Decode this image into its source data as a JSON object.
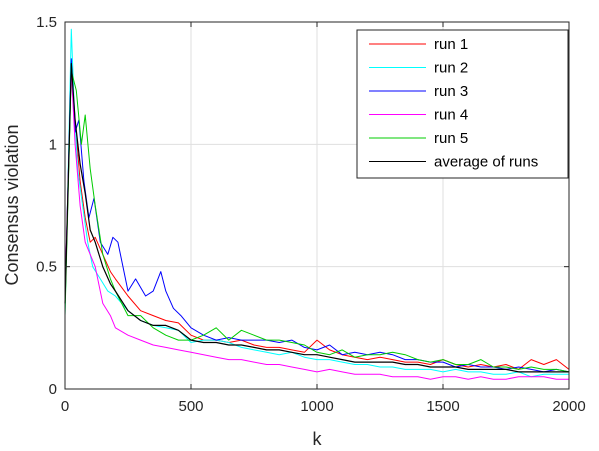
{
  "chart_data": {
    "type": "line",
    "title": "",
    "xlabel": "k",
    "ylabel": "Consensus violation",
    "xlim": [
      0,
      2000
    ],
    "ylim": [
      0,
      1.5
    ],
    "xticks": [
      0,
      500,
      1000,
      1500,
      2000
    ],
    "xtick_labels": [
      "0",
      "500",
      "1000",
      "1500",
      "2000"
    ],
    "yticks": [
      0,
      0.5,
      1,
      1.5
    ],
    "ytick_labels": [
      "0",
      "0.5",
      "1",
      "1.5"
    ],
    "grid": true,
    "legend_position": "top-right",
    "series": [
      {
        "name": "run 1",
        "color": "#ff0000",
        "x": [
          0,
          25,
          40,
          60,
          80,
          100,
          120,
          150,
          180,
          200,
          250,
          300,
          350,
          400,
          450,
          500,
          550,
          600,
          650,
          700,
          750,
          800,
          850,
          900,
          950,
          1000,
          1050,
          1100,
          1150,
          1200,
          1250,
          1300,
          1350,
          1400,
          1450,
          1500,
          1550,
          1600,
          1650,
          1700,
          1750,
          1800,
          1850,
          1900,
          1950,
          2000
        ],
        "y": [
          0.35,
          1.32,
          1.1,
          0.85,
          0.7,
          0.6,
          0.62,
          0.55,
          0.48,
          0.45,
          0.38,
          0.32,
          0.3,
          0.28,
          0.27,
          0.22,
          0.2,
          0.2,
          0.19,
          0.2,
          0.18,
          0.17,
          0.17,
          0.16,
          0.15,
          0.2,
          0.16,
          0.14,
          0.13,
          0.12,
          0.13,
          0.12,
          0.11,
          0.11,
          0.1,
          0.12,
          0.1,
          0.09,
          0.1,
          0.09,
          0.1,
          0.08,
          0.12,
          0.1,
          0.12,
          0.08
        ]
      },
      {
        "name": "run 2",
        "color": "#00ffff",
        "x": [
          0,
          25,
          35,
          50,
          70,
          90,
          110,
          140,
          170,
          200,
          250,
          300,
          350,
          400,
          450,
          500,
          550,
          600,
          650,
          700,
          750,
          800,
          850,
          900,
          950,
          1000,
          1050,
          1100,
          1150,
          1200,
          1250,
          1300,
          1350,
          1400,
          1450,
          1500,
          1550,
          1600,
          1650,
          1700,
          1750,
          1800,
          1850,
          1900,
          1950,
          2000
        ],
        "y": [
          0.3,
          1.47,
          1.2,
          0.9,
          0.75,
          0.6,
          0.5,
          0.45,
          0.4,
          0.38,
          0.32,
          0.28,
          0.26,
          0.25,
          0.24,
          0.19,
          0.2,
          0.2,
          0.19,
          0.17,
          0.16,
          0.15,
          0.14,
          0.15,
          0.13,
          0.12,
          0.12,
          0.11,
          0.1,
          0.1,
          0.09,
          0.09,
          0.08,
          0.08,
          0.08,
          0.07,
          0.08,
          0.07,
          0.07,
          0.06,
          0.06,
          0.07,
          0.05,
          0.06,
          0.06,
          0.06
        ]
      },
      {
        "name": "run 3",
        "color": "#0000ff",
        "x": [
          0,
          25,
          40,
          55,
          75,
          95,
          115,
          140,
          170,
          190,
          210,
          250,
          280,
          320,
          350,
          380,
          400,
          430,
          460,
          500,
          550,
          600,
          650,
          700,
          750,
          800,
          850,
          900,
          950,
          1000,
          1050,
          1100,
          1150,
          1200,
          1250,
          1300,
          1350,
          1400,
          1450,
          1500,
          1550,
          1600,
          1650,
          1700,
          1750,
          1800,
          1850,
          1900,
          1950,
          2000
        ],
        "y": [
          0.35,
          1.35,
          1.05,
          1.1,
          0.85,
          0.7,
          0.78,
          0.6,
          0.55,
          0.62,
          0.6,
          0.4,
          0.45,
          0.38,
          0.4,
          0.48,
          0.4,
          0.33,
          0.3,
          0.25,
          0.22,
          0.2,
          0.21,
          0.2,
          0.2,
          0.2,
          0.19,
          0.2,
          0.17,
          0.16,
          0.18,
          0.14,
          0.15,
          0.14,
          0.15,
          0.14,
          0.12,
          0.12,
          0.11,
          0.11,
          0.09,
          0.1,
          0.09,
          0.09,
          0.08,
          0.09,
          0.08,
          0.07,
          0.08,
          0.07
        ]
      },
      {
        "name": "run 4",
        "color": "#ff00ff",
        "x": [
          0,
          25,
          40,
          60,
          80,
          100,
          120,
          150,
          180,
          200,
          250,
          300,
          350,
          400,
          450,
          500,
          550,
          600,
          650,
          700,
          750,
          800,
          850,
          900,
          950,
          1000,
          1050,
          1100,
          1150,
          1200,
          1250,
          1300,
          1350,
          1400,
          1450,
          1500,
          1550,
          1600,
          1650,
          1700,
          1750,
          1800,
          1850,
          1900,
          1950,
          2000
        ],
        "y": [
          0.4,
          1.3,
          1.0,
          0.75,
          0.6,
          0.55,
          0.5,
          0.35,
          0.3,
          0.25,
          0.22,
          0.2,
          0.18,
          0.17,
          0.16,
          0.15,
          0.14,
          0.13,
          0.12,
          0.12,
          0.11,
          0.1,
          0.1,
          0.09,
          0.08,
          0.07,
          0.08,
          0.07,
          0.06,
          0.06,
          0.06,
          0.05,
          0.05,
          0.05,
          0.04,
          0.05,
          0.05,
          0.04,
          0.05,
          0.04,
          0.04,
          0.05,
          0.05,
          0.05,
          0.04,
          0.04
        ]
      },
      {
        "name": "run 5",
        "color": "#00cc00",
        "x": [
          0,
          25,
          45,
          65,
          80,
          100,
          120,
          150,
          180,
          200,
          250,
          300,
          350,
          400,
          450,
          500,
          550,
          600,
          650,
          700,
          750,
          800,
          850,
          900,
          950,
          1000,
          1050,
          1100,
          1150,
          1200,
          1250,
          1300,
          1350,
          1400,
          1450,
          1500,
          1550,
          1600,
          1650,
          1700,
          1750,
          1800,
          1850,
          1900,
          1950,
          2000
        ],
        "y": [
          0.3,
          1.3,
          1.22,
          1.0,
          1.12,
          0.9,
          0.75,
          0.55,
          0.45,
          0.4,
          0.3,
          0.3,
          0.25,
          0.22,
          0.2,
          0.2,
          0.22,
          0.25,
          0.2,
          0.24,
          0.22,
          0.2,
          0.2,
          0.19,
          0.18,
          0.15,
          0.14,
          0.16,
          0.13,
          0.14,
          0.14,
          0.15,
          0.14,
          0.12,
          0.11,
          0.12,
          0.1,
          0.1,
          0.12,
          0.09,
          0.09,
          0.08,
          0.09,
          0.08,
          0.08,
          0.07
        ]
      },
      {
        "name": "average of runs",
        "color": "#000000",
        "x": [
          0,
          25,
          40,
          60,
          80,
          100,
          120,
          150,
          180,
          200,
          250,
          300,
          350,
          400,
          450,
          500,
          550,
          600,
          650,
          700,
          750,
          800,
          850,
          900,
          950,
          1000,
          1050,
          1100,
          1150,
          1200,
          1250,
          1300,
          1350,
          1400,
          1450,
          1500,
          1550,
          1600,
          1650,
          1700,
          1750,
          1800,
          1850,
          1900,
          1950,
          2000
        ],
        "y": [
          0.35,
          1.33,
          1.1,
          0.92,
          0.8,
          0.65,
          0.6,
          0.5,
          0.43,
          0.4,
          0.32,
          0.28,
          0.26,
          0.26,
          0.24,
          0.2,
          0.19,
          0.19,
          0.18,
          0.18,
          0.17,
          0.16,
          0.16,
          0.15,
          0.14,
          0.14,
          0.13,
          0.12,
          0.11,
          0.11,
          0.11,
          0.11,
          0.1,
          0.1,
          0.09,
          0.09,
          0.09,
          0.08,
          0.08,
          0.08,
          0.08,
          0.07,
          0.07,
          0.07,
          0.07,
          0.07
        ]
      }
    ]
  }
}
